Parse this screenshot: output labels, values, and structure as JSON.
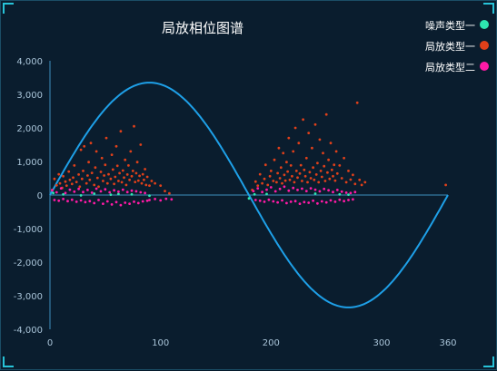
{
  "colors": {
    "background": "#0a1d2e",
    "axis": "#3d8fbf",
    "text": "#a9c4d8",
    "title": "#ffffff",
    "sine": "#1ea0e8"
  },
  "chart_data": {
    "type": "scatter",
    "title": "局放相位图谱",
    "xlabel": "",
    "ylabel": "",
    "xlim": [
      0,
      360
    ],
    "ylim": [
      -4000,
      4000
    ],
    "x_ticks": [
      "0",
      "100",
      "200",
      "300",
      "360"
    ],
    "x_tick_values": [
      0,
      100,
      200,
      300,
      360
    ],
    "y_ticks": [
      "4,000",
      "3,000",
      "2,000",
      "1,000",
      "0",
      "-1,000",
      "-2,000",
      "-3,000",
      "-4,000"
    ],
    "y_tick_values": [
      4000,
      3000,
      2000,
      1000,
      0,
      -1000,
      -2000,
      -3000,
      -4000
    ],
    "grid": false,
    "legend_position": "top-right",
    "reference_curve": {
      "type": "sine",
      "amplitude": 3350,
      "period": 360
    },
    "series": [
      {
        "name": "噪声类型一",
        "color": "#2ee6b0",
        "points": [
          [
            3,
            60
          ],
          [
            12,
            20
          ],
          [
            28,
            -10
          ],
          [
            40,
            40
          ],
          [
            55,
            10
          ],
          [
            62,
            30
          ],
          [
            74,
            20
          ],
          [
            90,
            -20
          ],
          [
            180,
            -100
          ],
          [
            185,
            20
          ],
          [
            196,
            30
          ],
          [
            240,
            40
          ],
          [
            262,
            20
          ],
          [
            270,
            10
          ]
        ]
      },
      {
        "name": "局放类型一",
        "color": "#e0401a",
        "points": [
          [
            2,
            150
          ],
          [
            4,
            480
          ],
          [
            6,
            290
          ],
          [
            8,
            620
          ],
          [
            9,
            350
          ],
          [
            11,
            210
          ],
          [
            12,
            560
          ],
          [
            14,
            400
          ],
          [
            15,
            280
          ],
          [
            17,
            700
          ],
          [
            18,
            450
          ],
          [
            20,
            330
          ],
          [
            21,
            520
          ],
          [
            22,
            880
          ],
          [
            24,
            390
          ],
          [
            26,
            610
          ],
          [
            27,
            250
          ],
          [
            28,
            1350
          ],
          [
            29,
            480
          ],
          [
            30,
            720
          ],
          [
            31,
            1450
          ],
          [
            33,
            350
          ],
          [
            34,
            580
          ],
          [
            35,
            980
          ],
          [
            36,
            450
          ],
          [
            37,
            1550
          ],
          [
            38,
            660
          ],
          [
            40,
            300
          ],
          [
            41,
            820
          ],
          [
            42,
            1300
          ],
          [
            43,
            510
          ],
          [
            44,
            250
          ],
          [
            46,
            690
          ],
          [
            47,
            1100
          ],
          [
            48,
            420
          ],
          [
            49,
            580
          ],
          [
            50,
            900
          ],
          [
            51,
            1700
          ],
          [
            52,
            350
          ],
          [
            53,
            620
          ],
          [
            55,
            480
          ],
          [
            56,
            1200
          ],
          [
            57,
            760
          ],
          [
            58,
            330
          ],
          [
            59,
            540
          ],
          [
            60,
            1450
          ],
          [
            61,
            870
          ],
          [
            62,
            420
          ],
          [
            63,
            650
          ],
          [
            64,
            1900
          ],
          [
            65,
            380
          ],
          [
            66,
            730
          ],
          [
            67,
            520
          ],
          [
            68,
            1050
          ],
          [
            69,
            300
          ],
          [
            70,
            610
          ],
          [
            71,
            880
          ],
          [
            72,
            450
          ],
          [
            73,
            1300
          ],
          [
            74,
            560
          ],
          [
            75,
            720
          ],
          [
            76,
            2050
          ],
          [
            77,
            390
          ],
          [
            78,
            650
          ],
          [
            79,
            980
          ],
          [
            80,
            430
          ],
          [
            81,
            570
          ],
          [
            82,
            1500
          ],
          [
            83,
            350
          ],
          [
            84,
            620
          ],
          [
            85,
            450
          ],
          [
            86,
            770
          ],
          [
            87,
            300
          ],
          [
            88,
            540
          ],
          [
            90,
            280
          ],
          [
            92,
            420
          ],
          [
            95,
            350
          ],
          [
            100,
            280
          ],
          [
            104,
            120
          ],
          [
            108,
            50
          ],
          [
            183,
            150
          ],
          [
            186,
            400
          ],
          [
            188,
            280
          ],
          [
            190,
            620
          ],
          [
            192,
            350
          ],
          [
            194,
            480
          ],
          [
            195,
            900
          ],
          [
            197,
            300
          ],
          [
            199,
            560
          ],
          [
            200,
            720
          ],
          [
            202,
            420
          ],
          [
            203,
            1050
          ],
          [
            205,
            380
          ],
          [
            206,
            650
          ],
          [
            207,
            1400
          ],
          [
            208,
            500
          ],
          [
            209,
            820
          ],
          [
            210,
            350
          ],
          [
            211,
            1250
          ],
          [
            212,
            600
          ],
          [
            213,
            430
          ],
          [
            214,
            980
          ],
          [
            215,
            700
          ],
          [
            216,
            1700
          ],
          [
            217,
            450
          ],
          [
            218,
            880
          ],
          [
            219,
            560
          ],
          [
            220,
            1300
          ],
          [
            221,
            380
          ],
          [
            222,
            2000
          ],
          [
            223,
            720
          ],
          [
            224,
            520
          ],
          [
            225,
            1550
          ],
          [
            226,
            640
          ],
          [
            227,
            890
          ],
          [
            228,
            420
          ],
          [
            229,
            2250
          ],
          [
            230,
            750
          ],
          [
            231,
            560
          ],
          [
            232,
            1100
          ],
          [
            233,
            380
          ],
          [
            234,
            1850
          ],
          [
            235,
            680
          ],
          [
            236,
            500
          ],
          [
            237,
            1400
          ],
          [
            238,
            820
          ],
          [
            239,
            450
          ],
          [
            240,
            2100
          ],
          [
            241,
            610
          ],
          [
            242,
            950
          ],
          [
            243,
            380
          ],
          [
            244,
            1650
          ],
          [
            245,
            720
          ],
          [
            246,
            540
          ],
          [
            247,
            1250
          ],
          [
            248,
            860
          ],
          [
            249,
            420
          ],
          [
            250,
            2400
          ],
          [
            251,
            670
          ],
          [
            252,
            1050
          ],
          [
            253,
            480
          ],
          [
            254,
            1550
          ],
          [
            255,
            750
          ],
          [
            256,
            560
          ],
          [
            257,
            900
          ],
          [
            258,
            430
          ],
          [
            259,
            1300
          ],
          [
            260,
            640
          ],
          [
            262,
            880
          ],
          [
            264,
            500
          ],
          [
            266,
            1100
          ],
          [
            268,
            380
          ],
          [
            270,
            720
          ],
          [
            272,
            460
          ],
          [
            274,
            600
          ],
          [
            276,
            330
          ],
          [
            278,
            2750
          ],
          [
            280,
            450
          ],
          [
            282,
            300
          ],
          [
            285,
            380
          ],
          [
            358,
            300
          ]
        ]
      },
      {
        "name": "局放类型二",
        "color": "#ff1aa6",
        "points": [
          [
            2,
            140
          ],
          [
            4,
            -150
          ],
          [
            6,
            80
          ],
          [
            8,
            -170
          ],
          [
            10,
            200
          ],
          [
            12,
            -120
          ],
          [
            14,
            60
          ],
          [
            16,
            -180
          ],
          [
            18,
            160
          ],
          [
            20,
            -140
          ],
          [
            22,
            100
          ],
          [
            24,
            -200
          ],
          [
            26,
            180
          ],
          [
            28,
            -160
          ],
          [
            30,
            90
          ],
          [
            32,
            -210
          ],
          [
            34,
            150
          ],
          [
            36,
            -180
          ],
          [
            38,
            70
          ],
          [
            40,
            -240
          ],
          [
            42,
            190
          ],
          [
            44,
            -150
          ],
          [
            46,
            110
          ],
          [
            48,
            -260
          ],
          [
            50,
            170
          ],
          [
            52,
            -190
          ],
          [
            54,
            80
          ],
          [
            56,
            -280
          ],
          [
            58,
            140
          ],
          [
            60,
            -210
          ],
          [
            62,
            100
          ],
          [
            64,
            -300
          ],
          [
            66,
            160
          ],
          [
            68,
            -230
          ],
          [
            70,
            90
          ],
          [
            72,
            -260
          ],
          [
            74,
            130
          ],
          [
            76,
            -200
          ],
          [
            78,
            110
          ],
          [
            80,
            -240
          ],
          [
            82,
            80
          ],
          [
            84,
            -190
          ],
          [
            86,
            60
          ],
          [
            88,
            -170
          ],
          [
            90,
            -150
          ],
          [
            95,
            -120
          ],
          [
            100,
            -160
          ],
          [
            105,
            -110
          ],
          [
            110,
            -130
          ],
          [
            184,
            120
          ],
          [
            186,
            -150
          ],
          [
            188,
            200
          ],
          [
            190,
            -170
          ],
          [
            192,
            90
          ],
          [
            194,
            -200
          ],
          [
            196,
            160
          ],
          [
            198,
            -140
          ],
          [
            200,
            230
          ],
          [
            202,
            -190
          ],
          [
            204,
            110
          ],
          [
            206,
            -220
          ],
          [
            208,
            180
          ],
          [
            210,
            -160
          ],
          [
            212,
            250
          ],
          [
            214,
            -240
          ],
          [
            216,
            130
          ],
          [
            218,
            -200
          ],
          [
            220,
            210
          ],
          [
            222,
            -180
          ],
          [
            224,
            150
          ],
          [
            226,
            -260
          ],
          [
            228,
            190
          ],
          [
            230,
            -210
          ],
          [
            232,
            120
          ],
          [
            234,
            -230
          ],
          [
            236,
            200
          ],
          [
            238,
            -170
          ],
          [
            240,
            160
          ],
          [
            242,
            -250
          ],
          [
            244,
            110
          ],
          [
            246,
            -190
          ],
          [
            248,
            180
          ],
          [
            250,
            -220
          ],
          [
            252,
            140
          ],
          [
            254,
            -160
          ],
          [
            256,
            90
          ],
          [
            258,
            -200
          ],
          [
            260,
            150
          ],
          [
            262,
            -140
          ],
          [
            264,
            100
          ],
          [
            266,
            -180
          ],
          [
            268,
            70
          ],
          [
            270,
            -150
          ],
          [
            272,
            60
          ],
          [
            274,
            -130
          ],
          [
            276,
            90
          ]
        ]
      }
    ]
  }
}
